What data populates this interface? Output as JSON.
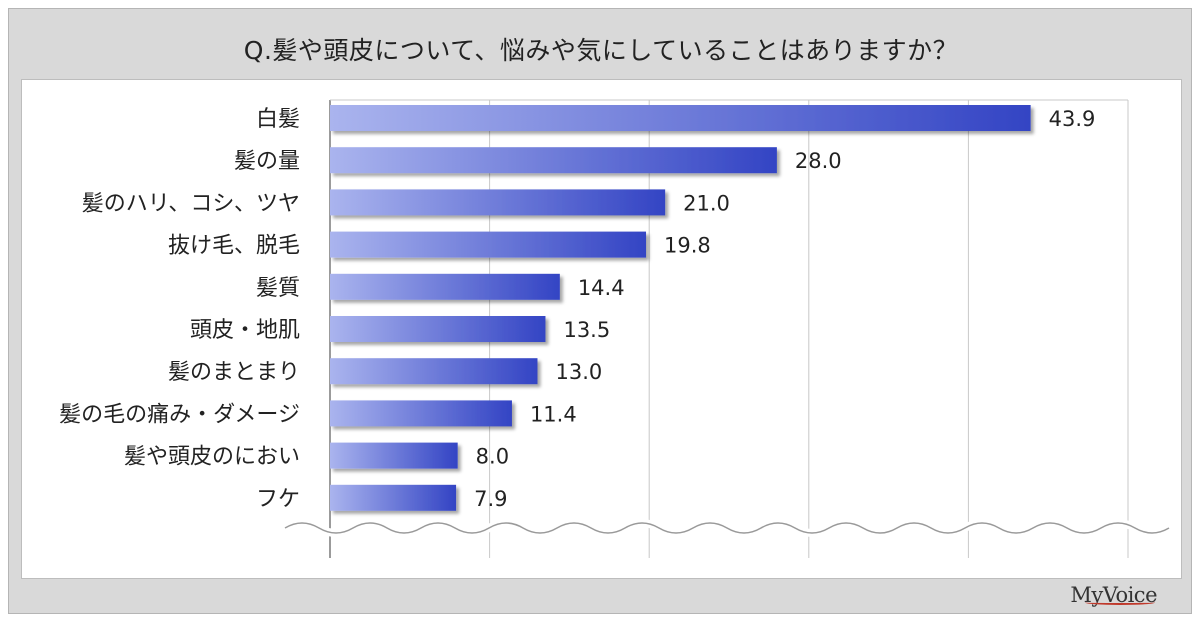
{
  "chart_data": {
    "type": "bar",
    "orientation": "horizontal",
    "title": "Q.髪や頭皮について、悩みや気にしていることはありますか？",
    "categories": [
      "白髪",
      "髪の量",
      "髪のハリ、コシ、ツヤ",
      "抜け毛、脱毛",
      "髪質",
      "頭皮・地肌",
      "髪のまとまり",
      "髪の毛の痛み・ダメージ",
      "髪や頭皮のにおい",
      "フケ"
    ],
    "values": [
      43.9,
      28.0,
      21.0,
      19.8,
      14.4,
      13.5,
      13.0,
      11.4,
      8.0,
      7.9
    ],
    "value_labels": [
      "43.9",
      "28.0",
      "21.0",
      "19.8",
      "14.4",
      "13.5",
      "13.0",
      "11.4",
      "8.0",
      "7.9"
    ],
    "xlim": [
      0,
      50
    ],
    "grid": true,
    "bar_color_start": "#aab4ee",
    "bar_color_end": "#3344c4"
  },
  "footer": {
    "logo": "MyVoice"
  }
}
